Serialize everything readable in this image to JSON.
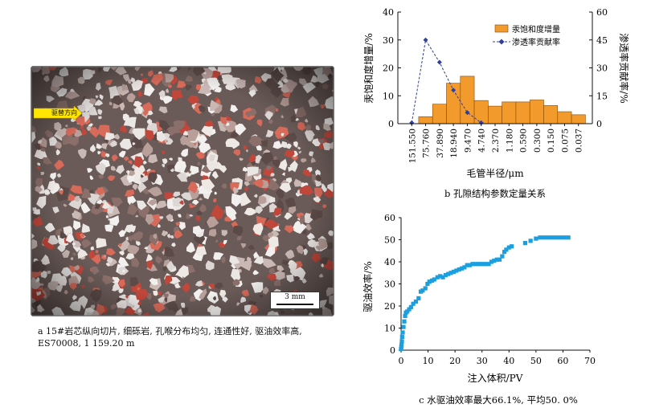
{
  "panel_a": {
    "direction_label": "驱替方向",
    "scale_label": "3 mm",
    "caption_line1": "a  15#岩芯纵向切片, 细砾岩, 孔喉分布均匀, 连通性好, 驱油效率高,",
    "caption_line2": "ES70008, 1 159.20 m"
  },
  "chart_data": [
    {
      "type": "bar",
      "caption": "b  孔隙结构参数定量关系",
      "xlabel": "毛管半径/μm",
      "ylabel": "汞饱和度增量/%",
      "y2label": "渗透率贡献率/%",
      "categories": [
        "151.550",
        "75.760",
        "37.890",
        "18.940",
        "9.470",
        "4.740",
        "2.370",
        "1.180",
        "0.590",
        "0.300",
        "0.150",
        "0.075",
        "0.037"
      ],
      "ylim": [
        0,
        40
      ],
      "yticks": [
        "0",
        "10",
        "20",
        "30",
        "40"
      ],
      "y2lim": [
        0,
        60
      ],
      "y2ticks": [
        "0",
        "15",
        "30",
        "45",
        "60"
      ],
      "legend_position": "top-right",
      "bar_color": "#f39a2c",
      "line_color": "#2f3f9e",
      "series": [
        {
          "name": "汞饱和度增量",
          "type": "bar",
          "axis": "left",
          "values": [
            0,
            2.5,
            7,
            14.5,
            17,
            8.3,
            6.3,
            7.8,
            7.8,
            8.5,
            6.5,
            4.3,
            3.2
          ]
        },
        {
          "name": "渗透率贡献率",
          "type": "line",
          "axis": "right",
          "values": [
            0.5,
            45,
            33,
            18,
            6,
            0.5,
            0,
            0,
            0,
            0,
            0,
            0,
            0
          ]
        }
      ]
    },
    {
      "type": "scatter",
      "caption": "c  水驱油效率最大66.1%, 平均50. 0%",
      "xlabel": "注入体积/PV",
      "ylabel": "驱油效率/%",
      "xlim": [
        0,
        70
      ],
      "xticks": [
        "0",
        "10",
        "20",
        "30",
        "40",
        "50",
        "60",
        "70"
      ],
      "ylim": [
        0,
        60
      ],
      "yticks": [
        "0",
        "10",
        "20",
        "30",
        "40",
        "50",
        "60"
      ],
      "marker_color": "#1aa0e0",
      "points": [
        [
          0.0,
          0.5
        ],
        [
          0.1,
          1.5
        ],
        [
          0.2,
          2.5
        ],
        [
          0.3,
          4
        ],
        [
          0.4,
          6
        ],
        [
          0.6,
          8
        ],
        [
          0.9,
          10.5
        ],
        [
          1.2,
          13
        ],
        [
          1.5,
          15.5
        ],
        [
          1.8,
          17
        ],
        [
          2.3,
          17.5
        ],
        [
          3,
          18.5
        ],
        [
          3.7,
          19.5
        ],
        [
          4.5,
          21
        ],
        [
          5.5,
          22
        ],
        [
          6.5,
          23.5
        ],
        [
          7.3,
          26.5
        ],
        [
          8,
          27
        ],
        [
          9,
          28
        ],
        [
          9.8,
          30
        ],
        [
          10.5,
          31
        ],
        [
          11.5,
          31.5
        ],
        [
          12.3,
          32
        ],
        [
          13.5,
          33
        ],
        [
          14.5,
          33.5
        ],
        [
          15.5,
          33
        ],
        [
          16.5,
          34
        ],
        [
          17.5,
          34.5
        ],
        [
          18.5,
          35
        ],
        [
          19.5,
          35.5
        ],
        [
          20.5,
          36
        ],
        [
          21.5,
          36.5
        ],
        [
          22.5,
          37
        ],
        [
          23.5,
          37.5
        ],
        [
          24.5,
          38.5
        ],
        [
          25.5,
          38.5
        ],
        [
          26.5,
          39
        ],
        [
          27.5,
          39
        ],
        [
          28.5,
          39
        ],
        [
          29.5,
          39
        ],
        [
          30.5,
          39
        ],
        [
          31.5,
          39
        ],
        [
          32.5,
          39
        ],
        [
          33.5,
          40
        ],
        [
          34.5,
          40.5
        ],
        [
          35.5,
          41
        ],
        [
          36.5,
          41
        ],
        [
          37.5,
          42.5
        ],
        [
          38.3,
          44.5
        ],
        [
          39,
          45.5
        ],
        [
          40,
          46.5
        ],
        [
          41,
          47
        ],
        [
          46,
          48.5
        ],
        [
          48,
          49.5
        ],
        [
          50,
          50.5
        ],
        [
          51.5,
          51
        ],
        [
          53,
          51
        ],
        [
          54.5,
          51
        ],
        [
          56,
          51
        ],
        [
          57.5,
          51
        ],
        [
          59,
          51
        ],
        [
          60.5,
          51
        ],
        [
          62,
          51
        ]
      ]
    }
  ]
}
